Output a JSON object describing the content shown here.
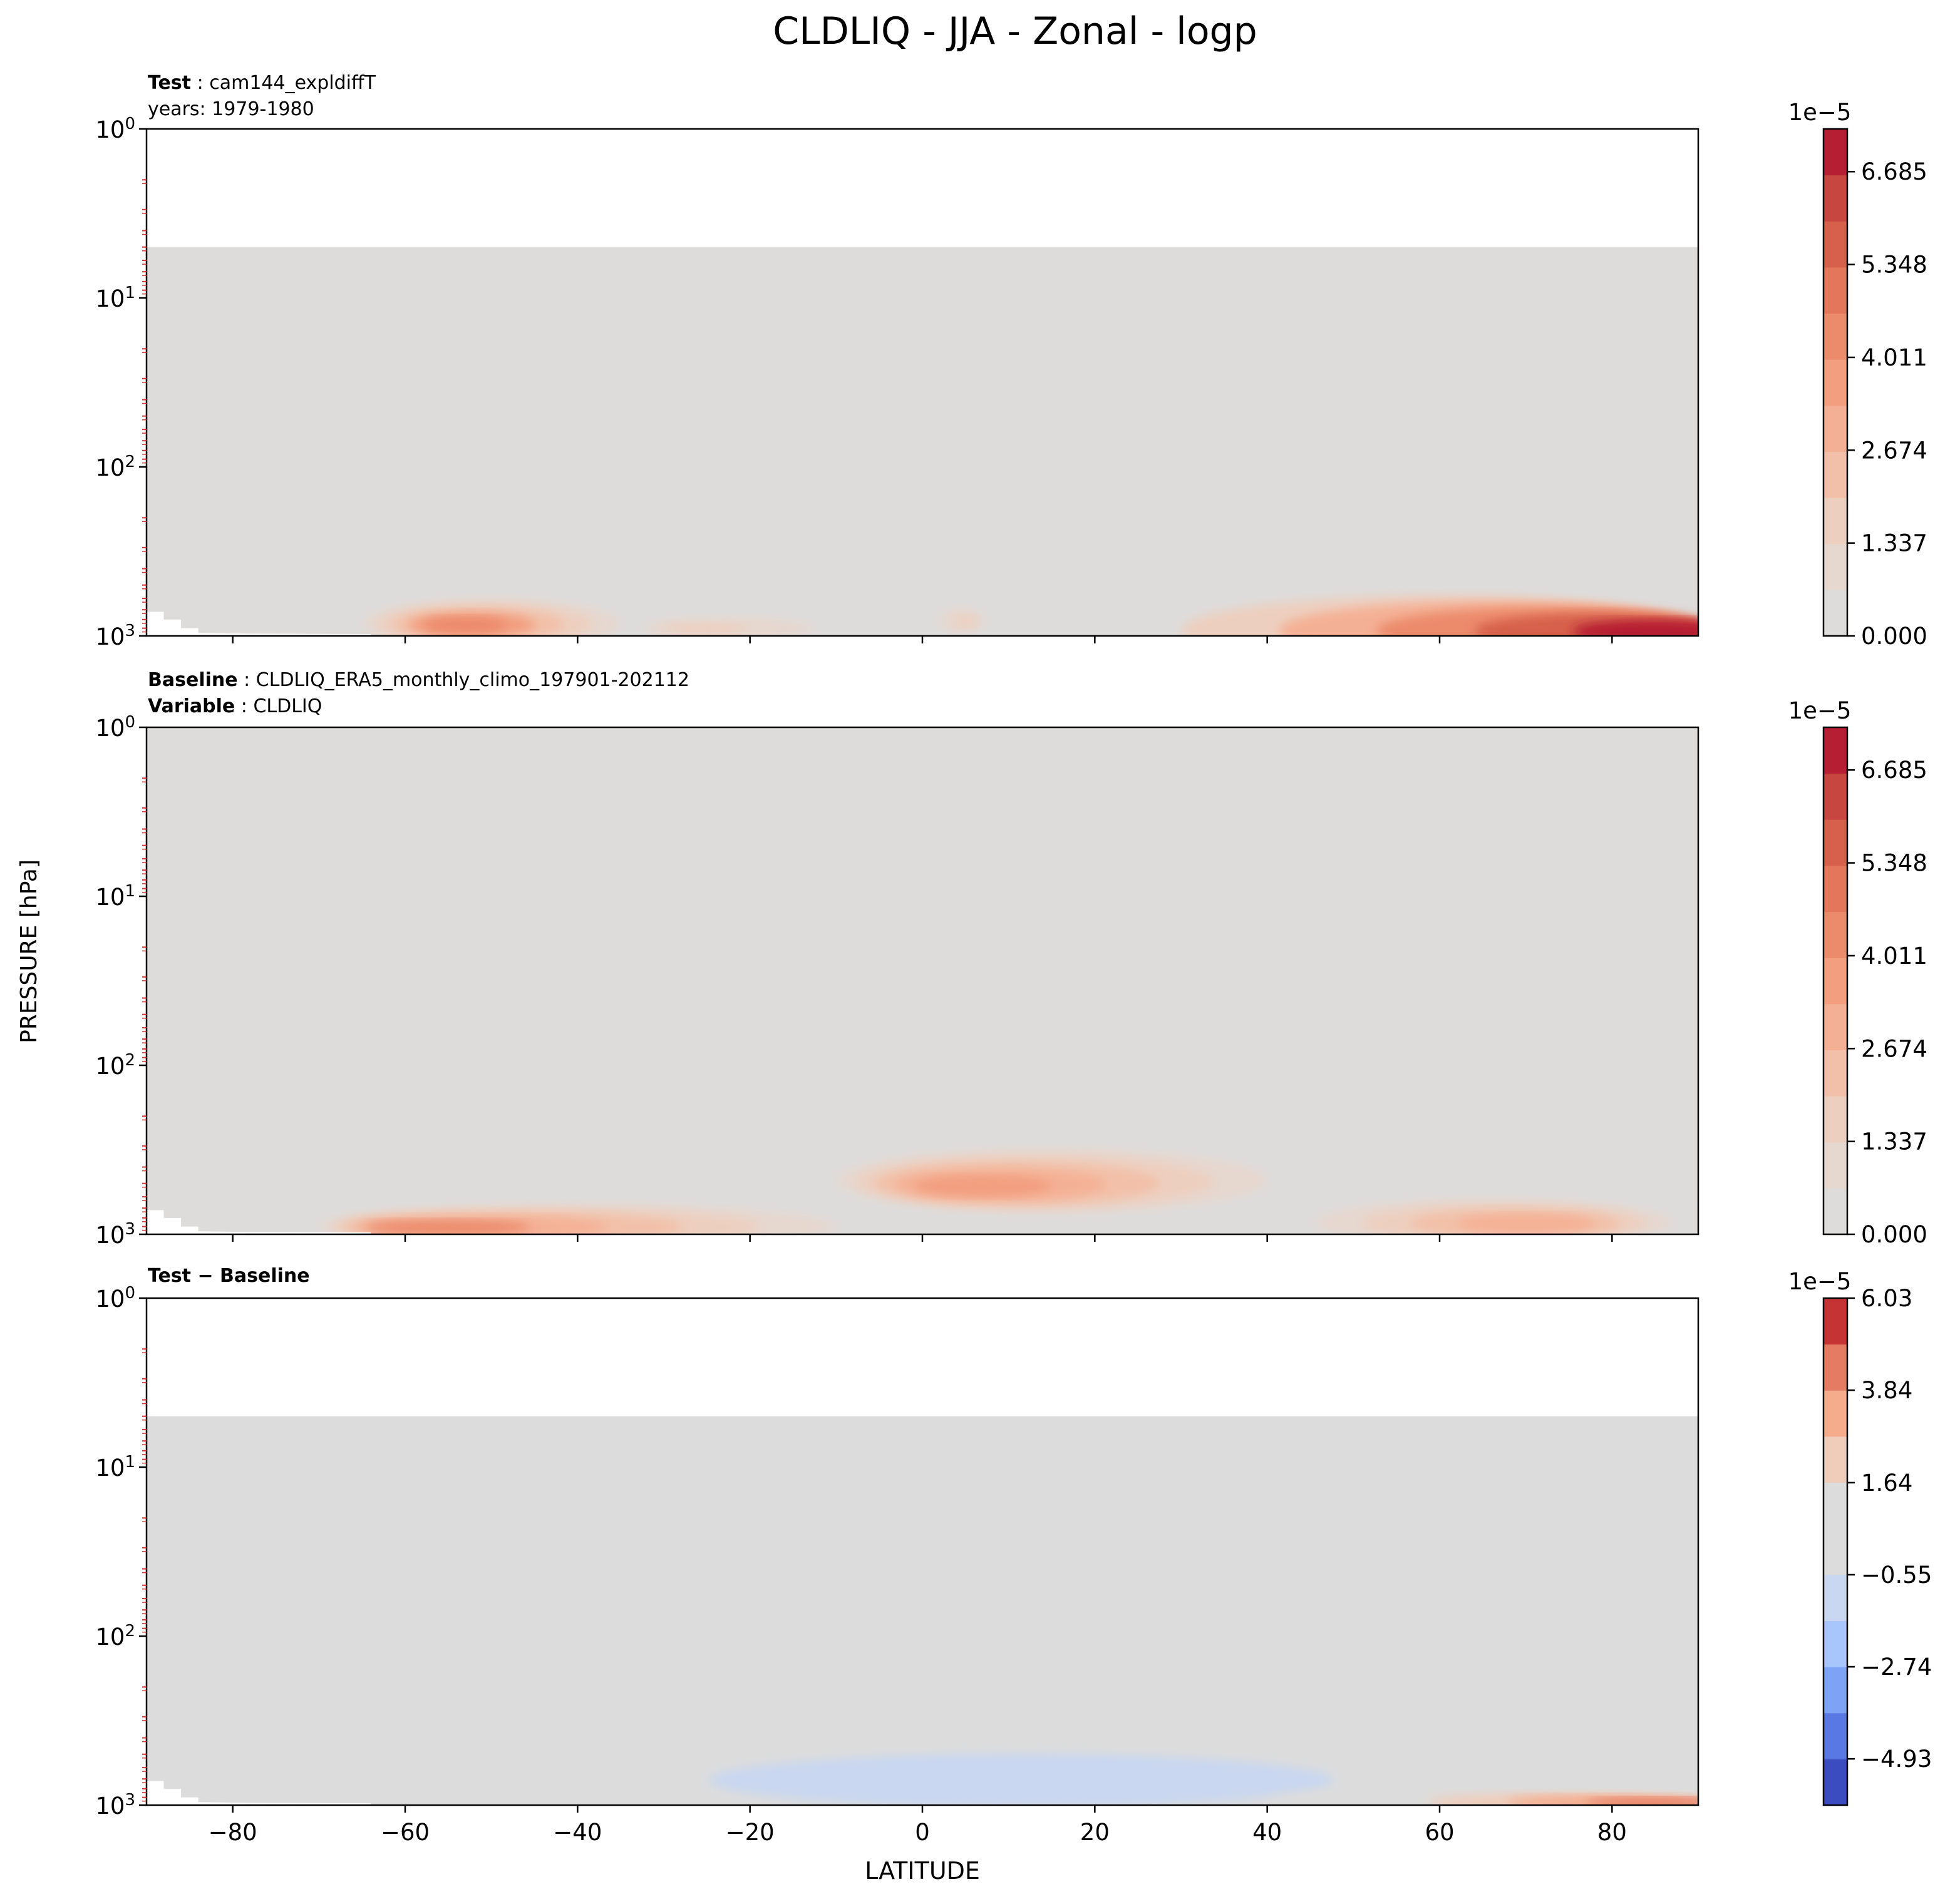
{
  "figure": {
    "title": "CLDLIQ - JJA - Zonal - logp",
    "ylabel": "PRESSURE [hPa]",
    "xlabel": "LATITUDE"
  },
  "chart_data": [
    {
      "type": "heatmap",
      "panel": "test",
      "header_lines": [
        {
          "key": "Test",
          "sep": " : ",
          "value": "cam144_expldiffT"
        },
        {
          "key": "",
          "sep": "",
          "value": "years: 1979-1980"
        }
      ],
      "x": {
        "range": [
          -90,
          90
        ],
        "ticks": [
          -80,
          -60,
          -40,
          -20,
          0,
          20,
          40,
          60,
          80
        ],
        "show_tick_labels": false
      },
      "y": {
        "scale": "log",
        "inverted": true,
        "range": [
          1,
          1000
        ],
        "tick_labels": [
          {
            "base": "10",
            "exp": "0",
            "v": 1
          },
          {
            "base": "10",
            "exp": "1",
            "v": 10
          },
          {
            "base": "10",
            "exp": "2",
            "v": 100
          },
          {
            "base": "10",
            "exp": "3",
            "v": 1000
          }
        ]
      },
      "top_of_data_hPa": 5,
      "colorbar": {
        "exponent_label": "1e−5",
        "tick_labels": [
          "0.000",
          "1.337",
          "2.674",
          "4.011",
          "5.348",
          "6.685"
        ],
        "tick_values": [
          0,
          1.337,
          2.674,
          4.011,
          5.348,
          6.685
        ],
        "range": [
          0,
          7.3
        ],
        "colors": [
          "#dddcdb",
          "#e6d7cf",
          "#edcfbf",
          "#f2c0a8",
          "#f4b094",
          "#f29e7f",
          "#ec8a6c",
          "#e3765b",
          "#d6604c",
          "#c84640",
          "#b61e33"
        ]
      },
      "features": [
        {
          "lat": [
            -65,
            -35
          ],
          "p": [
            600,
            1000
          ],
          "peak": 4.2,
          "center": [
            -53,
            850
          ]
        },
        {
          "lat": [
            -35,
            -5
          ],
          "p": [
            750,
            1000
          ],
          "peak": 1.5,
          "center": [
            -25,
            900
          ]
        },
        {
          "lat": [
            0,
            8
          ],
          "p": [
            650,
            900
          ],
          "peak": 1.4,
          "center": [
            5,
            800
          ]
        },
        {
          "lat": [
            30,
            90
          ],
          "p": [
            450,
            1000
          ],
          "peak": 7.3,
          "center": [
            85,
            930
          ]
        }
      ]
    },
    {
      "type": "heatmap",
      "panel": "baseline",
      "header_lines": [
        {
          "key": "Baseline",
          "sep": " : ",
          "value": "CLDLIQ_ERA5_monthly_climo_197901-202112"
        },
        {
          "key": "Variable",
          "sep": " : ",
          "value": "CLDLIQ"
        }
      ],
      "x": {
        "range": [
          -90,
          90
        ],
        "ticks": [
          -80,
          -60,
          -40,
          -20,
          0,
          20,
          40,
          60,
          80
        ],
        "show_tick_labels": false
      },
      "y": {
        "scale": "log",
        "inverted": true,
        "range": [
          1,
          1000
        ],
        "tick_labels": [
          {
            "base": "10",
            "exp": "0",
            "v": 1
          },
          {
            "base": "10",
            "exp": "1",
            "v": 10
          },
          {
            "base": "10",
            "exp": "2",
            "v": 100
          },
          {
            "base": "10",
            "exp": "3",
            "v": 1000
          }
        ]
      },
      "top_of_data_hPa": 1,
      "colorbar": {
        "exponent_label": "1e−5",
        "tick_labels": [
          "0.000",
          "1.337",
          "2.674",
          "4.011",
          "5.348",
          "6.685"
        ],
        "tick_values": [
          0,
          1.337,
          2.674,
          4.011,
          5.348,
          6.685
        ],
        "range": [
          0,
          7.3
        ],
        "colors": [
          "#dddcdb",
          "#e6d7cf",
          "#edcfbf",
          "#f2c0a8",
          "#f4b094",
          "#f29e7f",
          "#ec8a6c",
          "#e3765b",
          "#d6604c",
          "#c84640",
          "#b61e33"
        ]
      },
      "features": [
        {
          "lat": [
            -70,
            -10
          ],
          "p": [
            650,
            1000
          ],
          "peak": 4.0,
          "center": [
            -55,
            900
          ]
        },
        {
          "lat": [
            -10,
            40
          ],
          "p": [
            350,
            700
          ],
          "peak": 3.5,
          "center": [
            7,
            480
          ]
        },
        {
          "lat": [
            40,
            90
          ],
          "p": [
            550,
            1000
          ],
          "peak": 3.0,
          "center": [
            70,
            850
          ]
        }
      ]
    },
    {
      "type": "heatmap",
      "panel": "difference",
      "header_lines": [
        {
          "key": "Test − Baseline",
          "sep": "",
          "value": ""
        }
      ],
      "x": {
        "range": [
          -90,
          90
        ],
        "ticks": [
          -80,
          -60,
          -40,
          -20,
          0,
          20,
          40,
          60,
          80
        ],
        "tick_labels": [
          "−80",
          "−60",
          "−40",
          "−20",
          "0",
          "20",
          "40",
          "60",
          "80"
        ],
        "show_tick_labels": true
      },
      "y": {
        "scale": "log",
        "inverted": true,
        "range": [
          1,
          1000
        ],
        "tick_labels": [
          {
            "base": "10",
            "exp": "0",
            "v": 1
          },
          {
            "base": "10",
            "exp": "1",
            "v": 10
          },
          {
            "base": "10",
            "exp": "2",
            "v": 100
          },
          {
            "base": "10",
            "exp": "3",
            "v": 1000
          }
        ]
      },
      "top_of_data_hPa": 5,
      "colorbar": {
        "exponent_label": "1e−5",
        "tick_labels": [
          "−4.93",
          "−2.74",
          "−0.55",
          "1.64",
          "3.84",
          "6.03"
        ],
        "tick_values": [
          -4.93,
          -2.74,
          -0.55,
          1.64,
          3.84,
          6.03
        ],
        "range": [
          -6.03,
          6.03
        ],
        "colors": [
          "#3b4cc0",
          "#5a78e3",
          "#7ea3f6",
          "#a8c5fc",
          "#c9d7f0",
          "#dcdcdc",
          "#dcdcdc",
          "#f0cdbb",
          "#f4ac8d",
          "#e57b62",
          "#c53334"
        ]
      },
      "features": [
        {
          "lat": [
            -75,
            -55
          ],
          "p": [
            750,
            1000
          ],
          "peak": 0.8,
          "center": [
            -60,
            880
          ]
        },
        {
          "lat": [
            -42,
            68
          ],
          "p": [
            400,
            1000
          ],
          "peak": -1.0,
          "center": [
            10,
            700
          ]
        },
        {
          "lat": [
            40,
            90
          ],
          "p": [
            800,
            1000
          ],
          "peak": 4.0,
          "center": [
            85,
            960
          ]
        }
      ]
    }
  ]
}
